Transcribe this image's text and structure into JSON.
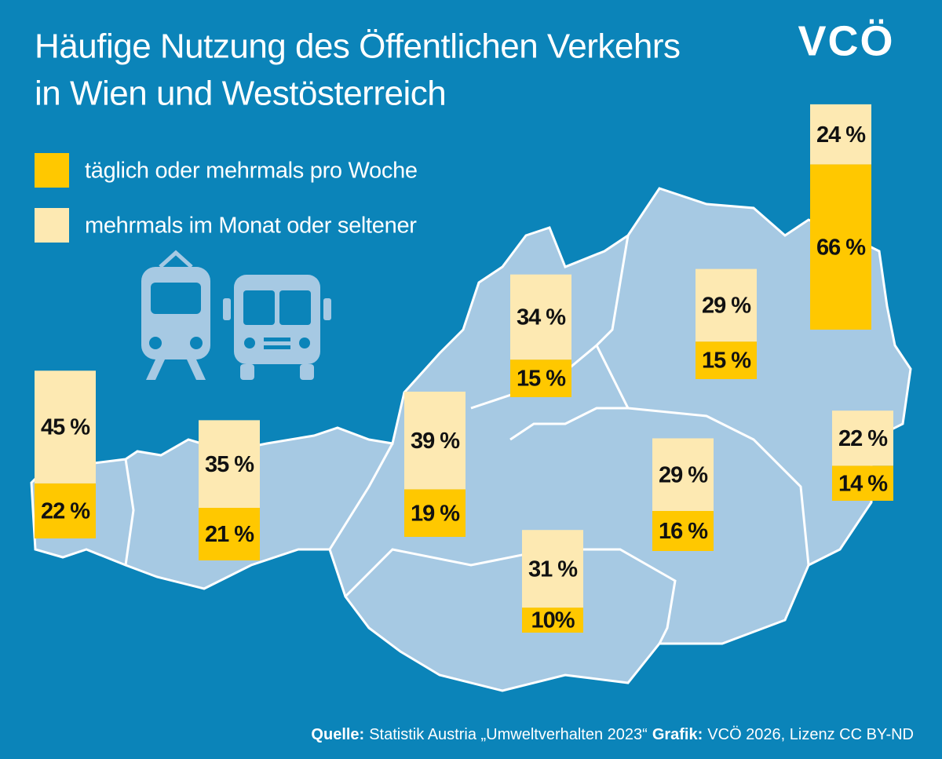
{
  "chart_data": {
    "type": "bar",
    "stacked": true,
    "title": [
      "Häufige Nutzung des Öffentlichen Verkehrs",
      "in Wien und Westösterreich"
    ],
    "logo": "VCÖ",
    "categories": [
      null,
      null,
      null,
      null,
      null,
      null,
      null,
      null,
      null
    ],
    "series": [
      {
        "name": "täglich oder mehrmals pro Woche",
        "color": "#ffc800",
        "values": [
          22,
          21,
          19,
          15,
          10,
          16,
          15,
          14,
          66
        ],
        "value_labels": [
          "22 %",
          "21 %",
          "19 %",
          "15 %",
          "10%",
          "16 %",
          "15 %",
          "14 %",
          "66 %"
        ]
      },
      {
        "name": "mehrmals im Monat oder seltener",
        "color": "#fde9b2",
        "values": [
          45,
          35,
          39,
          34,
          31,
          29,
          29,
          22,
          24
        ],
        "value_labels": [
          "45 %",
          "35 %",
          "39 %",
          "34 %",
          "31 %",
          "29 %",
          "29 %",
          "22 %",
          "24 %"
        ]
      }
    ],
    "source": {
      "label": "Quelle:",
      "text": "Statistik Austria „Umweltverhalten 2023“",
      "credit_label": "Grafik:",
      "credit": "VCÖ 2026, Lizenz CC BY-ND"
    }
  }
}
